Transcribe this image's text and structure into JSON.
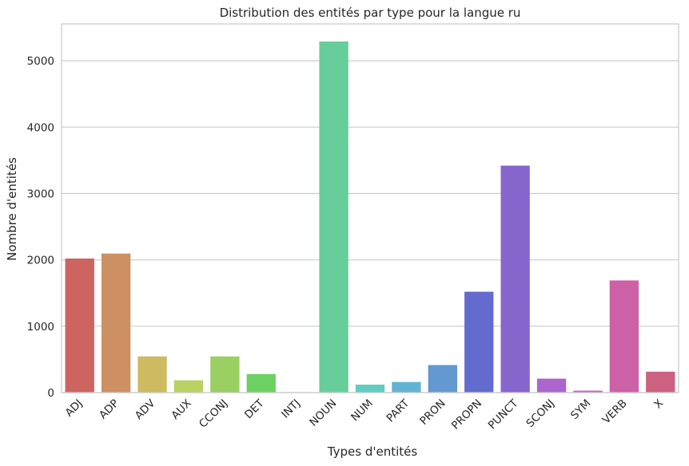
{
  "chart_data": {
    "type": "bar",
    "title": "Distribution des entités par type pour la langue ru",
    "xlabel": "Types d'entités",
    "ylabel": "Nombre d'entités",
    "categories": [
      "ADJ",
      "ADP",
      "ADV",
      "AUX",
      "CCONJ",
      "DET",
      "INTJ",
      "NOUN",
      "NUM",
      "PART",
      "PRON",
      "PROPN",
      "PUNCT",
      "SCONJ",
      "SYM",
      "VERB",
      "X"
    ],
    "values": [
      2020,
      2095,
      545,
      185,
      545,
      280,
      5,
      5290,
      120,
      160,
      415,
      1520,
      3420,
      210,
      30,
      1690,
      315
    ],
    "colors": [
      "#cd6460",
      "#cc9063",
      "#cdba61",
      "#b9d162",
      "#9acf62",
      "#6cd062",
      "#62d079",
      "#67cd9b",
      "#61ccc4",
      "#62b3d1",
      "#6398d0",
      "#646bce",
      "#8666cd",
      "#ab65cd",
      "#cc61cb",
      "#cc61a6",
      "#cd6182"
    ],
    "yticks": [
      0,
      1000,
      2000,
      3000,
      4000,
      5000
    ],
    "ylim": [
      0,
      5555
    ],
    "grid": true,
    "rotated_xticks": true
  }
}
